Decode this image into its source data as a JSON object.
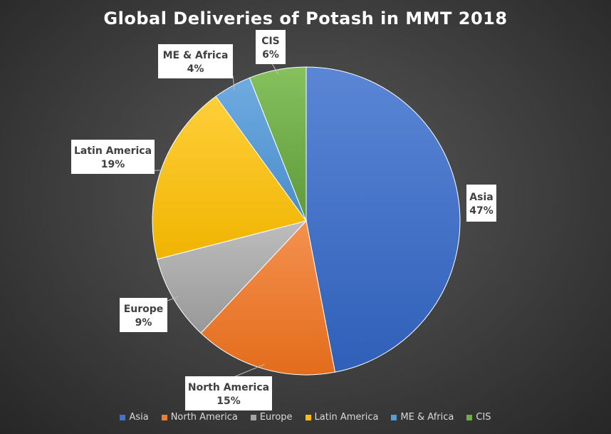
{
  "chart_data": {
    "type": "pie",
    "title": "Global Deliveries  of Potash in MMT 2018",
    "categories": [
      "Asia",
      "North America",
      "Europe",
      "Latin America",
      "ME & Africa",
      "CIS"
    ],
    "values": [
      47,
      15,
      9,
      19,
      4,
      6
    ],
    "value_labels": [
      "47%",
      "15%",
      "9%",
      "19%",
      "4%",
      "6%"
    ],
    "colors": [
      "#4472C4",
      "#ED7D31",
      "#A5A5A5",
      "#FFC000",
      "#5B9BD5",
      "#70AD47"
    ],
    "legend_position": "bottom",
    "data_labels": "callouts"
  }
}
